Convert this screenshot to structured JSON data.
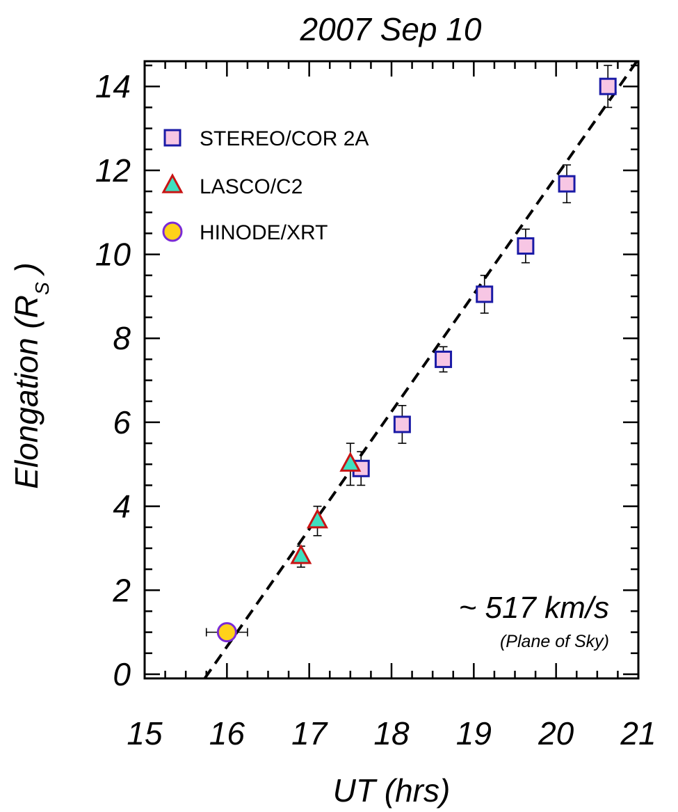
{
  "chart_data": {
    "type": "scatter",
    "title": "2007 Sep 10",
    "xlabel": "UT (hrs)",
    "ylabel_main": "Elongation (R",
    "ylabel_sub": "S",
    "ylabel_close": " )",
    "xlim": [
      15,
      21
    ],
    "ylim": [
      -0.1,
      14.6
    ],
    "xticks": [
      15,
      16,
      17,
      18,
      19,
      20,
      21
    ],
    "yticks": [
      0,
      2,
      4,
      6,
      8,
      10,
      12,
      14
    ],
    "xtick_labels": [
      "15",
      "16",
      "17",
      "18",
      "19",
      "20",
      "21"
    ],
    "ytick_labels": [
      "0",
      "2",
      "4",
      "6",
      "8",
      "10",
      "12",
      "14"
    ],
    "series": [
      {
        "name": "STEREO/COR 2A",
        "marker": "square",
        "fill": "#f7c6e4",
        "stroke": "#1a1aa6",
        "points": [
          {
            "x": 17.63,
            "y": 4.9,
            "yerr": 0.4
          },
          {
            "x": 18.13,
            "y": 5.95,
            "yerr": 0.45
          },
          {
            "x": 18.63,
            "y": 7.5,
            "yerr": 0.3
          },
          {
            "x": 19.13,
            "y": 9.05,
            "yerr": 0.45
          },
          {
            "x": 19.63,
            "y": 10.2,
            "yerr": 0.4
          },
          {
            "x": 20.13,
            "y": 11.68,
            "yerr": 0.45
          },
          {
            "x": 20.63,
            "y": 14.0,
            "yerr": 0.5
          }
        ]
      },
      {
        "name": "LASCO/C2",
        "marker": "triangle",
        "fill": "#3fe0c0",
        "stroke": "#c81414",
        "points": [
          {
            "x": 16.9,
            "y": 2.8,
            "yerr": 0.25
          },
          {
            "x": 17.1,
            "y": 3.65,
            "yerr": 0.35
          },
          {
            "x": 17.5,
            "y": 5.0,
            "yerr": 0.5
          }
        ]
      },
      {
        "name": "HINODE/XRT",
        "marker": "circle",
        "fill": "#ffd21a",
        "stroke": "#7a2ad6",
        "points": [
          {
            "x": 16.0,
            "y": 1.0,
            "xerr": 0.25
          }
        ]
      }
    ],
    "fit_line": {
      "style": "dashed",
      "x": [
        15.73,
        21.0
      ],
      "y": [
        -0.1,
        14.65
      ]
    },
    "annotation": {
      "main": "~ 517 km/s",
      "sub": "(Plane of Sky)"
    },
    "legend": {
      "placement": "top-left"
    },
    "grid": false
  }
}
